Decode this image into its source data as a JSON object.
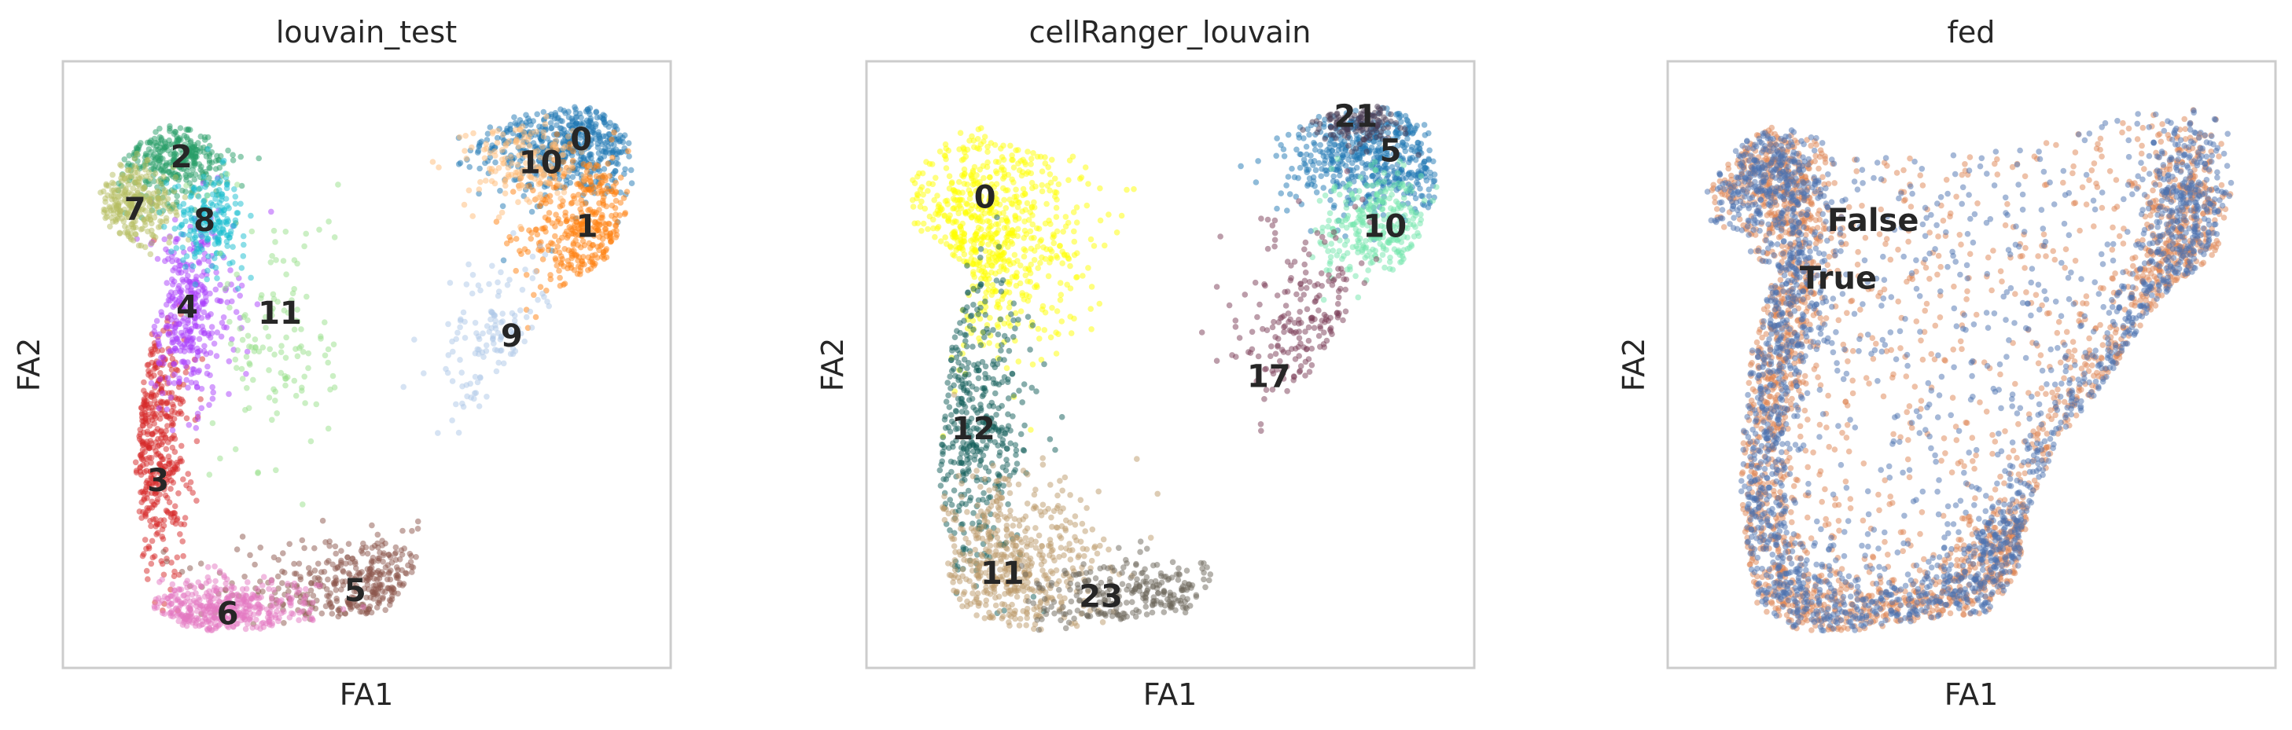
{
  "chart_data": [
    {
      "type": "scatter",
      "title": "louvain_test",
      "xlabel": "FA1",
      "ylabel": "FA2",
      "grid": false,
      "legend": "on data",
      "point_alpha": 0.5,
      "groups": [
        {
          "name": "0",
          "color": "#1f77b4",
          "center": [
            0.86,
            0.89
          ],
          "spread": [
            0.08,
            0.05
          ],
          "n": 520
        },
        {
          "name": "1",
          "color": "#ff7f0e",
          "center": [
            0.88,
            0.73
          ],
          "spread": [
            0.05,
            0.07
          ],
          "n": 360
        },
        {
          "name": "2",
          "color": "#279e68",
          "center": [
            0.17,
            0.86
          ],
          "spread": [
            0.05,
            0.04
          ],
          "n": 320
        },
        {
          "name": "3",
          "color": "#d62728",
          "center": [
            0.13,
            0.37
          ],
          "spread": [
            0.03,
            0.12
          ],
          "n": 420
        },
        {
          "name": "4",
          "color": "#aa40fc",
          "center": [
            0.19,
            0.59
          ],
          "spread": [
            0.04,
            0.08
          ],
          "n": 360
        },
        {
          "name": "5",
          "color": "#8c564b",
          "center": [
            0.54,
            0.11
          ],
          "spread": [
            0.13,
            0.04
          ],
          "n": 360
        },
        {
          "name": "6",
          "color": "#e377c2",
          "center": [
            0.25,
            0.07
          ],
          "spread": [
            0.08,
            0.03
          ],
          "n": 400
        },
        {
          "name": "7",
          "color": "#b5bd61",
          "center": [
            0.09,
            0.77
          ],
          "spread": [
            0.04,
            0.04
          ],
          "n": 260
        },
        {
          "name": "8",
          "color": "#17becf",
          "center": [
            0.23,
            0.75
          ],
          "spread": [
            0.03,
            0.04
          ],
          "n": 200
        },
        {
          "name": "9",
          "color": "#aec7e8",
          "center": [
            0.74,
            0.52
          ],
          "spread": [
            0.06,
            0.08
          ],
          "n": 130
        },
        {
          "name": "10",
          "color": "#ffbb78",
          "center": [
            0.77,
            0.85
          ],
          "spread": [
            0.05,
            0.04
          ],
          "n": 170
        },
        {
          "name": "11",
          "color": "#98df8a",
          "center": [
            0.35,
            0.55
          ],
          "spread": [
            0.05,
            0.12
          ],
          "n": 130
        }
      ],
      "labels": [
        {
          "text": "0",
          "pos": [
            0.87,
            0.89
          ]
        },
        {
          "text": "10",
          "pos": [
            0.8,
            0.85
          ]
        },
        {
          "text": "2",
          "pos": [
            0.18,
            0.86
          ]
        },
        {
          "text": "7",
          "pos": [
            0.1,
            0.77
          ]
        },
        {
          "text": "8",
          "pos": [
            0.22,
            0.75
          ]
        },
        {
          "text": "1",
          "pos": [
            0.88,
            0.74
          ]
        },
        {
          "text": "4",
          "pos": [
            0.19,
            0.6
          ]
        },
        {
          "text": "11",
          "pos": [
            0.35,
            0.59
          ]
        },
        {
          "text": "9",
          "pos": [
            0.75,
            0.55
          ]
        },
        {
          "text": "3",
          "pos": [
            0.14,
            0.3
          ]
        },
        {
          "text": "5",
          "pos": [
            0.48,
            0.11
          ]
        },
        {
          "text": "6",
          "pos": [
            0.26,
            0.07
          ]
        }
      ]
    },
    {
      "type": "scatter",
      "title": "cellRanger_louvain",
      "xlabel": "FA1",
      "ylabel": "FA2",
      "grid": false,
      "legend": "on data",
      "point_alpha": 0.5,
      "groups": [
        {
          "name": "0",
          "color": "#ffff00",
          "center": [
            0.17,
            0.73
          ],
          "spread": [
            0.09,
            0.1
          ],
          "n": 700
        },
        {
          "name": "5",
          "color": "#1f77b4",
          "center": [
            0.86,
            0.86
          ],
          "spread": [
            0.08,
            0.05
          ],
          "n": 520
        },
        {
          "name": "21",
          "color": "#4a3b53",
          "center": [
            0.82,
            0.92
          ],
          "spread": [
            0.04,
            0.02
          ],
          "n": 120
        },
        {
          "name": "10",
          "color": "#72e5ac",
          "center": [
            0.86,
            0.74
          ],
          "spread": [
            0.05,
            0.05
          ],
          "n": 280
        },
        {
          "name": "17",
          "color": "#7a3b56",
          "center": [
            0.75,
            0.55
          ],
          "spread": [
            0.06,
            0.09
          ],
          "n": 200
        },
        {
          "name": "12",
          "color": "#0f5c57",
          "center": [
            0.16,
            0.4
          ],
          "spread": [
            0.05,
            0.13
          ],
          "n": 420
        },
        {
          "name": "11",
          "color": "#bc9a6a",
          "center": [
            0.22,
            0.14
          ],
          "spread": [
            0.08,
            0.08
          ],
          "n": 520
        },
        {
          "name": "23",
          "color": "#6b6659",
          "center": [
            0.45,
            0.1
          ],
          "spread": [
            0.09,
            0.03
          ],
          "n": 260
        }
      ],
      "labels": [
        {
          "text": "21",
          "pos": [
            0.82,
            0.93
          ]
        },
        {
          "text": "5",
          "pos": [
            0.88,
            0.87
          ]
        },
        {
          "text": "0",
          "pos": [
            0.18,
            0.79
          ]
        },
        {
          "text": "10",
          "pos": [
            0.87,
            0.74
          ]
        },
        {
          "text": "17",
          "pos": [
            0.67,
            0.48
          ]
        },
        {
          "text": "12",
          "pos": [
            0.16,
            0.39
          ]
        },
        {
          "text": "11",
          "pos": [
            0.21,
            0.14
          ]
        },
        {
          "text": "23",
          "pos": [
            0.38,
            0.1
          ]
        }
      ]
    },
    {
      "type": "scatter",
      "title": "fed",
      "xlabel": "FA1",
      "ylabel": "FA2",
      "grid": false,
      "legend": "on data",
      "point_alpha": 0.5,
      "groups": [
        {
          "name": "False",
          "color": "#dd8452",
          "n": 2400
        },
        {
          "name": "True",
          "color": "#4c72b0",
          "n": 2400
        }
      ],
      "labels": [
        {
          "text": "False",
          "pos": [
            0.33,
            0.75
          ]
        },
        {
          "text": "True",
          "pos": [
            0.27,
            0.65
          ]
        }
      ]
    }
  ]
}
